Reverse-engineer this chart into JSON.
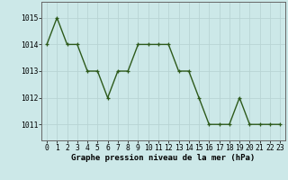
{
  "x": [
    0,
    1,
    2,
    3,
    4,
    5,
    6,
    7,
    8,
    9,
    10,
    11,
    12,
    13,
    14,
    15,
    16,
    17,
    18,
    19,
    20,
    21,
    22,
    23
  ],
  "y": [
    1014,
    1015,
    1014,
    1014,
    1013,
    1013,
    1012,
    1013,
    1013,
    1014,
    1014,
    1014,
    1014,
    1013,
    1013,
    1012,
    1011,
    1011,
    1011,
    1012,
    1011,
    1011,
    1011,
    1011
  ],
  "line_color": "#2d5a1b",
  "marker_color": "#2d5a1b",
  "bg_color": "#cce8e8",
  "grid_color": "#b8d4d4",
  "xlabel": "Graphe pression niveau de la mer (hPa)",
  "xlabel_fontsize": 6.5,
  "ylabel_ticks": [
    1011,
    1012,
    1013,
    1014,
    1015
  ],
  "xlim": [
    -0.5,
    23.5
  ],
  "ylim": [
    1010.4,
    1015.6
  ],
  "tick_fontsize": 5.8,
  "line_width": 1.0,
  "marker_size": 3.5
}
